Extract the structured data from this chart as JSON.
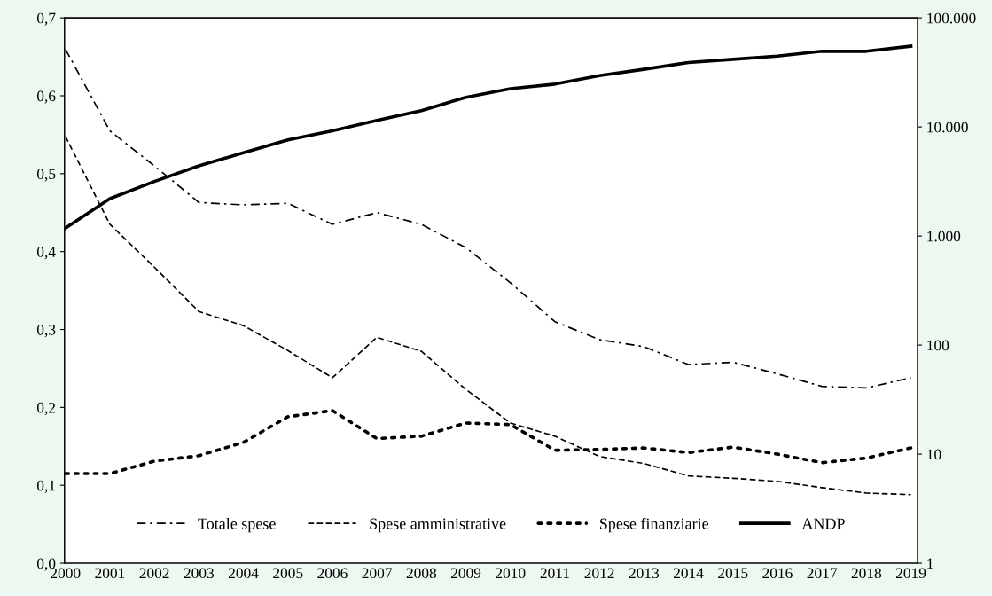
{
  "chart_data": {
    "type": "line",
    "categories": [
      "2000",
      "2001",
      "2002",
      "2003",
      "2004",
      "2005",
      "2006",
      "2007",
      "2008",
      "2009",
      "2010",
      "2011",
      "2012",
      "2013",
      "2014",
      "2015",
      "2016",
      "2017",
      "2018",
      "2019"
    ],
    "series": [
      {
        "name": "Totale spese",
        "color": "#000000",
        "line_style": "dashdot",
        "values": [
          0.66,
          0.555,
          0.51,
          0.463,
          0.46,
          0.462,
          0.435,
          0.45,
          0.435,
          0.405,
          0.36,
          0.31,
          0.287,
          0.278,
          0.255,
          0.258,
          0.243,
          0.227,
          0.225,
          0.238
        ]
      },
      {
        "name": "Spese amministrative",
        "color": "#000000",
        "line_style": "dashed",
        "values": [
          0.548,
          0.435,
          0.38,
          0.323,
          0.305,
          0.273,
          0.238,
          0.29,
          0.272,
          0.223,
          0.18,
          0.163,
          0.137,
          0.128,
          0.112,
          0.109,
          0.105,
          0.097,
          0.09,
          0.088
        ]
      },
      {
        "name": "Spese finanziarie",
        "color": "#000000",
        "line_style": "dotted",
        "values": [
          0.115,
          0.115,
          0.131,
          0.138,
          0.155,
          0.188,
          0.196,
          0.16,
          0.163,
          0.18,
          0.178,
          0.145,
          0.146,
          0.148,
          0.142,
          0.149,
          0.14,
          0.129,
          0.135,
          0.148
        ]
      },
      {
        "name": "ANDP",
        "color": "#000000",
        "line_style": "solid",
        "axis": "y2",
        "values": [
          1180,
          2200,
          3160,
          4400,
          5800,
          7600,
          9200,
          11500,
          14100,
          18700,
          22400,
          24700,
          29600,
          33800,
          39000,
          41700,
          44600,
          49400,
          49400,
          55000
        ]
      }
    ],
    "ylim": [
      0,
      0.7
    ],
    "yticks": [
      {
        "value": 0,
        "label": "0,0"
      },
      {
        "value": 0.1,
        "label": "0,1"
      },
      {
        "value": 0.2,
        "label": "0,2"
      },
      {
        "value": 0.3,
        "label": "0,3"
      },
      {
        "value": 0.4,
        "label": "0,4"
      },
      {
        "value": 0.5,
        "label": "0,5"
      },
      {
        "value": 0.6,
        "label": "0,6"
      },
      {
        "value": 0.7,
        "label": "0,7"
      }
    ],
    "log": "y2",
    "y2lim": [
      1,
      100000
    ],
    "y2ticks": [
      1,
      10,
      100,
      {
        "value": 1000,
        "label": "1.000"
      },
      {
        "value": 10000,
        "label": "10.000"
      },
      {
        "value": 100000,
        "label": "100.000"
      }
    ],
    "grid": false,
    "legend": "bottom",
    "marker": "none"
  }
}
